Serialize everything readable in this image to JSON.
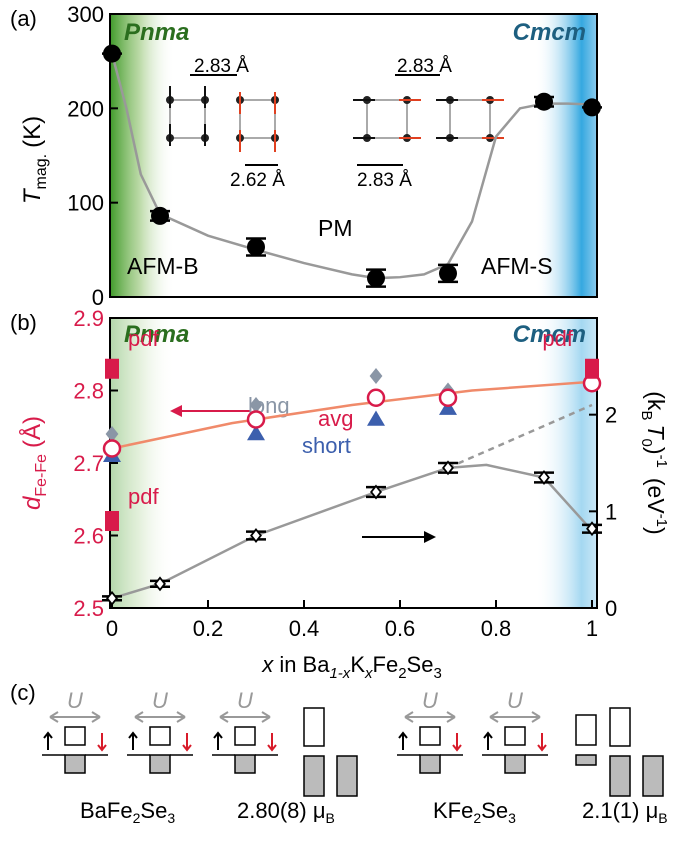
{
  "chart_data": [
    {
      "type": "scatter",
      "panel_label": "(a)",
      "y_label": {
        "main": "T",
        "sub": "mag.",
        "unit": "(K)"
      },
      "phases": [
        "Pnma",
        "Cmcm"
      ],
      "annotations": [
        "AFM-B",
        "PM",
        "AFM-S"
      ],
      "bond_labels": [
        "2.83 Å",
        "2.62 Å",
        "2.83 Å",
        "2.83 Å"
      ],
      "x": [
        0,
        0.1,
        0.3,
        0.55,
        0.7,
        0.9,
        1
      ],
      "values": [
        258,
        86,
        53,
        20,
        25,
        207,
        201
      ],
      "errors": [
        0,
        5,
        9,
        9,
        9,
        5,
        0
      ],
      "color": "#000000",
      "fit": {
        "x": [
          0,
          0.03,
          0.06,
          0.1,
          0.2,
          0.3,
          0.4,
          0.5,
          0.55,
          0.6,
          0.65,
          0.7,
          0.75,
          0.8,
          0.85,
          0.9,
          0.95,
          1
        ],
        "values": [
          258,
          200,
          130,
          88,
          65,
          50,
          36,
          24,
          20,
          21,
          24,
          35,
          80,
          170,
          200,
          205,
          205,
          204
        ],
        "color": "#999999"
      },
      "xlim": [
        0,
        1
      ],
      "ylim": [
        0,
        300
      ],
      "yticks": [
        0,
        100,
        200,
        300
      ]
    },
    {
      "type": "scatter",
      "panel_label": "(b)",
      "phases": [
        "Pnma",
        "Cmcm"
      ],
      "y_label": {
        "main": "d",
        "sub": "Fe-Fe",
        "unit": "(Å)"
      },
      "y2_label": [
        "(k",
        "B",
        "T",
        "0",
        ")",
        "-1",
        "(eV",
        "-1",
        ")"
      ],
      "x_label": [
        "x",
        " in Ba",
        "1-x",
        "K",
        "x",
        "Fe",
        "2",
        "Se",
        "3"
      ],
      "annotations": [
        "pdf",
        "pdf",
        "pdf"
      ],
      "series": [
        {
          "name": "long",
          "color": "#8a96a6",
          "marker": "diamond",
          "x": [
            0,
            0.3,
            0.55,
            0.7,
            1
          ],
          "values": [
            2.74,
            2.78,
            2.82,
            2.8,
            2.82
          ]
        },
        {
          "name": "short",
          "color": "#3c5fad",
          "marker": "triangle",
          "x": [
            0,
            0.3,
            0.55,
            0.7,
            1
          ],
          "values": [
            2.71,
            2.74,
            2.76,
            2.775,
            2.815
          ]
        },
        {
          "name": "avg",
          "color": "#d81b4a",
          "marker": "circle-open",
          "x": [
            0,
            0.3,
            0.55,
            0.7,
            1
          ],
          "values": [
            2.72,
            2.76,
            2.79,
            2.79,
            2.81
          ]
        },
        {
          "color": "#d81b4a",
          "marker": "square",
          "x": [
            0,
            0,
            1
          ],
          "values": [
            2.83,
            2.62,
            2.83
          ]
        },
        {
          "axis": "y2",
          "color": "#000000",
          "marker": "diamond-open",
          "x": [
            0,
            0.1,
            0.3,
            0.55,
            0.7,
            0.9,
            1
          ],
          "values": [
            0.1,
            0.25,
            0.75,
            1.2,
            1.45,
            1.35,
            0.82
          ],
          "errors": [
            0.02,
            0.03,
            0.04,
            0.05,
            0.05,
            0.05,
            0.04
          ]
        }
      ],
      "fits": [
        {
          "color": "#f08a6a",
          "x": [
            0,
            0.25,
            0.5,
            0.75,
            1
          ],
          "values": [
            2.72,
            2.755,
            2.78,
            2.8,
            2.812
          ]
        },
        {
          "axis": "y2",
          "color": "#999999",
          "x": [
            0,
            0.1,
            0.3,
            0.55,
            0.7,
            0.78,
            0.9,
            1
          ],
          "values": [
            0.1,
            0.25,
            0.75,
            1.2,
            1.45,
            1.48,
            1.35,
            0.8
          ]
        },
        {
          "axis": "y2",
          "color": "#999999",
          "dashed": true,
          "x": [
            0.7,
            1
          ],
          "values": [
            1.45,
            2.1
          ]
        }
      ],
      "xlim": [
        0,
        1
      ],
      "xticks": [
        0,
        0.2,
        0.4,
        0.6,
        0.8,
        1
      ],
      "ylim": [
        2.5,
        2.9
      ],
      "yticks": [
        2.5,
        2.6,
        2.7,
        2.8,
        2.9
      ],
      "y2lim": [
        0,
        3
      ],
      "y2ticks": [
        0,
        1,
        2
      ]
    }
  ],
  "panel_c": {
    "label": "(c)",
    "u_labels": [
      "U",
      "U",
      "U",
      "U",
      "U"
    ],
    "compounds": [
      [
        "BaFe",
        "2",
        "Se",
        "3"
      ],
      [
        "KFe",
        "2",
        "Se",
        "3"
      ]
    ],
    "moments": [
      [
        "2.80(8) μ",
        "B"
      ],
      [
        "2.1(1) μ",
        "B"
      ]
    ]
  }
}
